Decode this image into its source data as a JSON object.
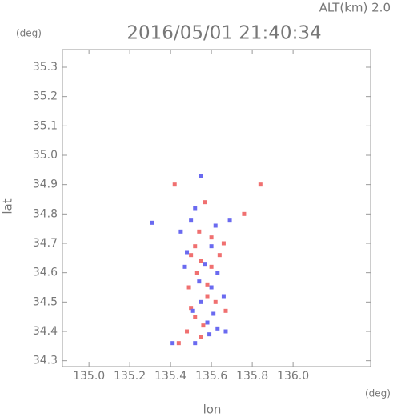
{
  "chart_data": {
    "type": "scatter",
    "title": "2016/05/01 21:40:34",
    "annotation": "ALT(km) 2.0",
    "y_unit": "(deg)",
    "x_unit": "(deg)",
    "xlabel": "lon",
    "ylabel": "lat",
    "xlim": [
      134.87,
      136.38
    ],
    "ylim": [
      34.28,
      35.36
    ],
    "xticks": [
      {
        "value": 135.0,
        "label": "135.0"
      },
      135.2,
      135.4,
      135.6,
      135.8,
      {
        "value": 136.0,
        "label": "136.0"
      }
    ],
    "yticks": [
      34.3,
      34.4,
      34.5,
      34.6,
      34.7,
      34.8,
      34.9,
      {
        "value": 35.0,
        "label": "35.0"
      },
      35.1,
      35.2,
      35.3
    ],
    "series": [
      {
        "color": "#f07070",
        "x": [
          135.42,
          135.57,
          135.84,
          135.76,
          135.52,
          135.5,
          135.55,
          135.6,
          135.64,
          135.53,
          135.58,
          135.62,
          135.5,
          135.52,
          135.56,
          135.48,
          135.44,
          135.55,
          135.67,
          135.6,
          135.66,
          135.54,
          135.58,
          135.49
        ],
        "y": [
          34.9,
          34.84,
          34.9,
          34.8,
          34.69,
          34.66,
          34.64,
          34.62,
          34.66,
          34.6,
          34.56,
          34.5,
          34.48,
          34.45,
          34.42,
          34.4,
          34.36,
          34.38,
          34.47,
          34.72,
          34.7,
          34.74,
          34.52,
          34.55
        ]
      },
      {
        "color": "#6a6af0",
        "x": [
          135.55,
          135.52,
          135.5,
          135.62,
          135.69,
          135.31,
          135.45,
          135.6,
          135.48,
          135.57,
          135.63,
          135.54,
          135.6,
          135.66,
          135.55,
          135.51,
          135.61,
          135.58,
          135.63,
          135.59,
          135.41,
          135.52,
          135.67,
          135.47
        ],
        "y": [
          34.93,
          34.82,
          34.78,
          34.76,
          34.78,
          34.77,
          34.74,
          34.69,
          34.67,
          34.63,
          34.6,
          34.57,
          34.55,
          34.52,
          34.5,
          34.47,
          34.46,
          34.43,
          34.41,
          34.39,
          34.36,
          34.36,
          34.4,
          34.62
        ]
      }
    ]
  }
}
